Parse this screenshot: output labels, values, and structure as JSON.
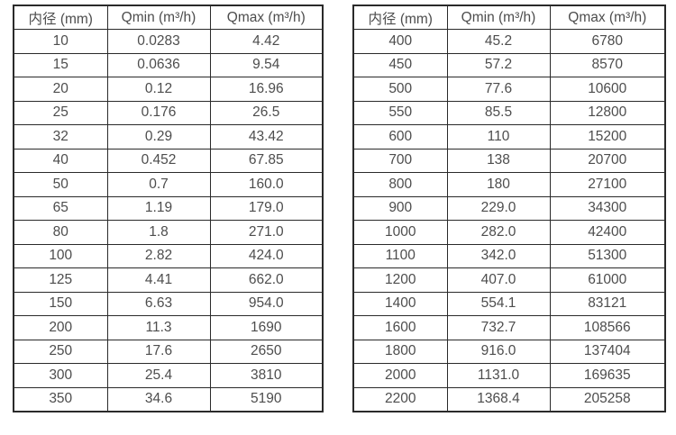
{
  "page": {
    "background_color": "#ffffff",
    "text_color": "#4d4d4d",
    "border_color": "#2a2a2a"
  },
  "column_semantics": [
    "diameter",
    "qmin",
    "qmax"
  ],
  "tables": [
    {
      "name": "flow-table-small-diameters",
      "headers": [
        "内径 (mm)",
        "Qmin (m³/h)",
        "Qmax (m³/h)"
      ],
      "rows": [
        [
          "10",
          "0.0283",
          "4.42"
        ],
        [
          "15",
          "0.0636",
          "9.54"
        ],
        [
          "20",
          "0.12",
          "16.96"
        ],
        [
          "25",
          "0.176",
          "26.5"
        ],
        [
          "32",
          "0.29",
          "43.42"
        ],
        [
          "40",
          "0.452",
          "67.85"
        ],
        [
          "50",
          "0.7",
          "160.0"
        ],
        [
          "65",
          "1.19",
          "179.0"
        ],
        [
          "80",
          "1.8",
          "271.0"
        ],
        [
          "100",
          "2.82",
          "424.0"
        ],
        [
          "125",
          "4.41",
          "662.0"
        ],
        [
          "150",
          "6.63",
          "954.0"
        ],
        [
          "200",
          "11.3",
          "1690"
        ],
        [
          "250",
          "17.6",
          "2650"
        ],
        [
          "300",
          "25.4",
          "3810"
        ],
        [
          "350",
          "34.6",
          "5190"
        ]
      ]
    },
    {
      "name": "flow-table-large-diameters",
      "headers": [
        "内径 (mm)",
        "Qmin (m³/h)",
        "Qmax (m³/h)"
      ],
      "rows": [
        [
          "400",
          "45.2",
          "6780"
        ],
        [
          "450",
          "57.2",
          "8570"
        ],
        [
          "500",
          "77.6",
          "10600"
        ],
        [
          "550",
          "85.5",
          "12800"
        ],
        [
          "600",
          "110",
          "15200"
        ],
        [
          "700",
          "138",
          "20700"
        ],
        [
          "800",
          "180",
          "27100"
        ],
        [
          "900",
          "229.0",
          "34300"
        ],
        [
          "1000",
          "282.0",
          "42400"
        ],
        [
          "1100",
          "342.0",
          "51300"
        ],
        [
          "1200",
          "407.0",
          "61000"
        ],
        [
          "1400",
          "554.1",
          "83121"
        ],
        [
          "1600",
          "732.7",
          "108566"
        ],
        [
          "1800",
          "916.0",
          "137404"
        ],
        [
          "2000",
          "1131.0",
          "169635"
        ],
        [
          "2200",
          "1368.4",
          "205258"
        ]
      ]
    }
  ]
}
